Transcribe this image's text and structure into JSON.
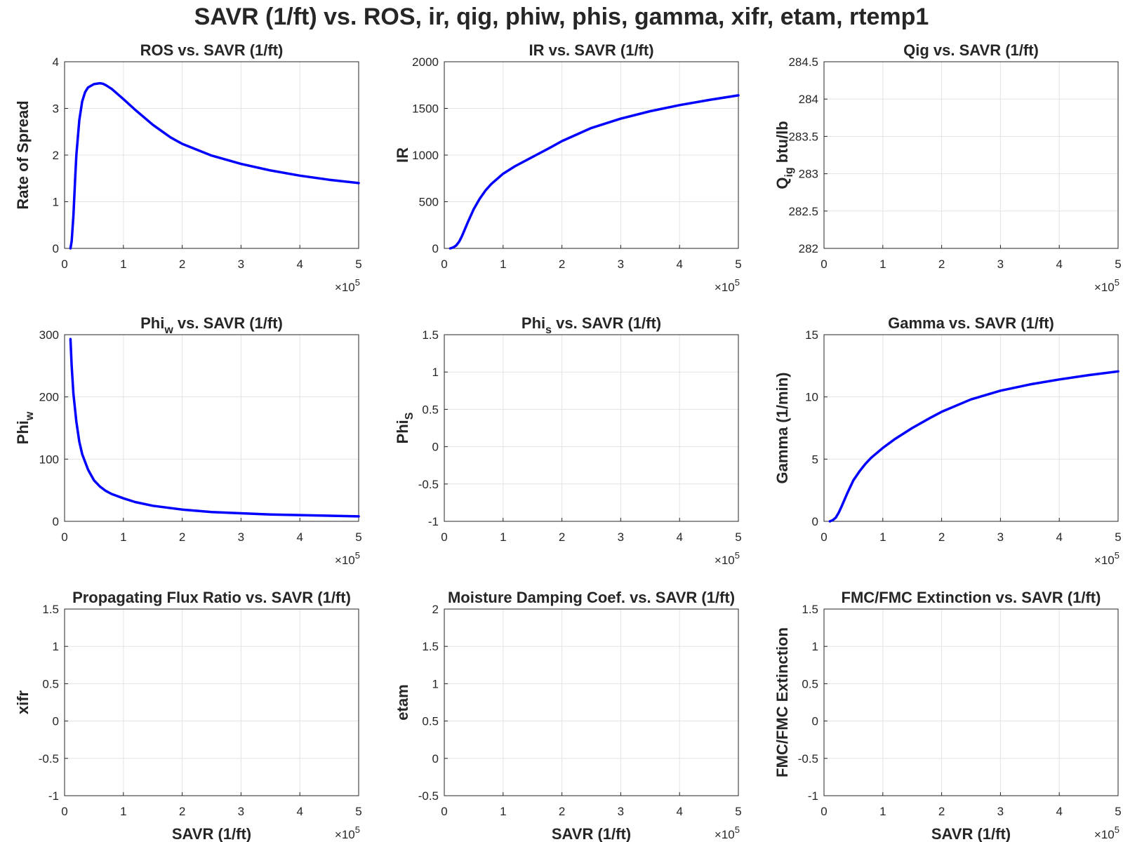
{
  "figure": {
    "title": "SAVR (1/ft) vs. ROS, ir, qig, phiw, phis, gamma, xifr, etam, rtemp1",
    "line_color": "#0000ff"
  },
  "chart_data": [
    {
      "type": "line",
      "title": "ROS vs. SAVR (1/ft)",
      "xlabel": "",
      "ylabel": "Rate of Spread",
      "xlim": [
        0,
        5
      ],
      "ylim": [
        0,
        4
      ],
      "xticks": [
        "0",
        "1",
        "2",
        "3",
        "4",
        "5"
      ],
      "yticks": [
        "0",
        "1",
        "2",
        "3",
        "4"
      ],
      "x_exponent": "5",
      "grid": true,
      "x": [
        0.1,
        0.12,
        0.15,
        0.18,
        0.2,
        0.25,
        0.3,
        0.35,
        0.4,
        0.5,
        0.6,
        0.65,
        0.7,
        0.8,
        1.0,
        1.2,
        1.5,
        1.8,
        2.0,
        2.5,
        3.0,
        3.5,
        4.0,
        4.5,
        5.0
      ],
      "y": [
        0.0,
        0.15,
        0.7,
        1.5,
        2.0,
        2.75,
        3.15,
        3.35,
        3.45,
        3.52,
        3.54,
        3.53,
        3.5,
        3.42,
        3.2,
        2.97,
        2.65,
        2.38,
        2.24,
        1.99,
        1.81,
        1.67,
        1.56,
        1.47,
        1.4
      ]
    },
    {
      "type": "line",
      "title": "IR vs. SAVR (1/ft)",
      "xlabel": "",
      "ylabel": "IR",
      "xlim": [
        0,
        5
      ],
      "ylim": [
        0,
        2000
      ],
      "xticks": [
        "0",
        "1",
        "2",
        "3",
        "4",
        "5"
      ],
      "yticks": [
        "0",
        "500",
        "1000",
        "1500",
        "2000"
      ],
      "x_exponent": "5",
      "grid": true,
      "x": [
        0.1,
        0.15,
        0.2,
        0.25,
        0.3,
        0.4,
        0.5,
        0.6,
        0.7,
        0.8,
        1.0,
        1.2,
        1.5,
        1.8,
        2.0,
        2.5,
        3.0,
        3.5,
        4.0,
        4.5,
        5.0
      ],
      "y": [
        0,
        10,
        30,
        70,
        130,
        280,
        420,
        530,
        620,
        690,
        800,
        880,
        980,
        1080,
        1150,
        1290,
        1390,
        1470,
        1535,
        1590,
        1640
      ]
    },
    {
      "type": "line",
      "title": "Qig vs. SAVR (1/ft)",
      "xlabel": "",
      "ylabel": "Q",
      "ylabel_subscript": "ig",
      "ylabel_suffix": " btu/lb",
      "xlim": [
        0,
        5
      ],
      "ylim": [
        282,
        284.5
      ],
      "xticks": [
        "0",
        "1",
        "2",
        "3",
        "4",
        "5"
      ],
      "yticks": [
        "282",
        "282.5",
        "283",
        "283.5",
        "284",
        "284.5"
      ],
      "x_exponent": "5",
      "grid": true,
      "x": [],
      "y": []
    },
    {
      "type": "line",
      "title": "Phi",
      "title_subscript": "w",
      "title_suffix": " vs. SAVR (1/ft)",
      "xlabel": "",
      "ylabel": "Phi",
      "ylabel_subscript": "w",
      "xlim": [
        0,
        5
      ],
      "ylim": [
        0,
        300
      ],
      "xticks": [
        "0",
        "1",
        "2",
        "3",
        "4",
        "5"
      ],
      "yticks": [
        "0",
        "100",
        "200",
        "300"
      ],
      "x_exponent": "5",
      "grid": true,
      "x": [
        0.1,
        0.12,
        0.15,
        0.2,
        0.25,
        0.3,
        0.4,
        0.5,
        0.6,
        0.7,
        0.8,
        1.0,
        1.2,
        1.5,
        2.0,
        2.5,
        3.0,
        3.5,
        4.0,
        4.5,
        5.0
      ],
      "y": [
        293,
        250,
        205,
        160,
        128,
        108,
        83,
        66,
        56,
        49,
        44,
        37,
        31,
        25,
        19,
        15,
        13,
        11,
        10,
        9,
        8
      ]
    },
    {
      "type": "line",
      "title": "Phi",
      "title_subscript": "s",
      "title_suffix": " vs. SAVR (1/ft)",
      "xlabel": "",
      "ylabel": "Phi",
      "ylabel_subscript": "S",
      "xlim": [
        0,
        5
      ],
      "ylim": [
        -1,
        1.5
      ],
      "xticks": [
        "0",
        "1",
        "2",
        "3",
        "4",
        "5"
      ],
      "yticks": [
        "-1",
        "-0.5",
        "0",
        "0.5",
        "1",
        "1.5"
      ],
      "x_exponent": "5",
      "grid": true,
      "x": [],
      "y": []
    },
    {
      "type": "line",
      "title": "Gamma vs. SAVR (1/ft)",
      "xlabel": "",
      "ylabel": "Gamma (1/min)",
      "xlim": [
        0,
        5
      ],
      "ylim": [
        0,
        15
      ],
      "xticks": [
        "0",
        "1",
        "2",
        "3",
        "4",
        "5"
      ],
      "yticks": [
        "0",
        "5",
        "10",
        "15"
      ],
      "x_exponent": "5",
      "grid": true,
      "x": [
        0.1,
        0.15,
        0.2,
        0.25,
        0.3,
        0.4,
        0.5,
        0.6,
        0.7,
        0.8,
        1.0,
        1.2,
        1.5,
        1.8,
        2.0,
        2.5,
        3.0,
        3.5,
        4.0,
        4.5,
        5.0
      ],
      "y": [
        0,
        0.1,
        0.3,
        0.7,
        1.2,
        2.3,
        3.3,
        4.0,
        4.6,
        5.1,
        5.9,
        6.6,
        7.5,
        8.3,
        8.8,
        9.8,
        10.5,
        11.0,
        11.4,
        11.75,
        12.05
      ]
    },
    {
      "type": "line",
      "title": "Propagating Flux Ratio vs. SAVR (1/ft)",
      "xlabel": "SAVR (1/ft)",
      "ylabel": "xifr",
      "xlim": [
        0,
        5
      ],
      "ylim": [
        -1,
        1.5
      ],
      "xticks": [
        "0",
        "1",
        "2",
        "3",
        "4",
        "5"
      ],
      "yticks": [
        "-1",
        "-0.5",
        "0",
        "0.5",
        "1",
        "1.5"
      ],
      "x_exponent": "5",
      "grid": true,
      "x": [],
      "y": []
    },
    {
      "type": "line",
      "title": "Moisture Damping Coef. vs. SAVR (1/ft)",
      "xlabel": "SAVR (1/ft)",
      "ylabel": "etam",
      "xlim": [
        0,
        5
      ],
      "ylim": [
        -0.5,
        2
      ],
      "xticks": [
        "0",
        "1",
        "2",
        "3",
        "4",
        "5"
      ],
      "yticks": [
        "-0.5",
        "0",
        "0.5",
        "1",
        "1.5",
        "2"
      ],
      "x_exponent": "5",
      "grid": true,
      "x": [],
      "y": []
    },
    {
      "type": "line",
      "title": "FMC/FMC Extinction vs. SAVR (1/ft)",
      "xlabel": "SAVR (1/ft)",
      "ylabel": "FMC/FMC Extinction",
      "xlim": [
        0,
        5
      ],
      "ylim": [
        -1,
        1.5
      ],
      "xticks": [
        "0",
        "1",
        "2",
        "3",
        "4",
        "5"
      ],
      "yticks": [
        "-1",
        "-0.5",
        "0",
        "0.5",
        "1",
        "1.5"
      ],
      "x_exponent": "5",
      "grid": true,
      "x": [],
      "y": []
    }
  ]
}
